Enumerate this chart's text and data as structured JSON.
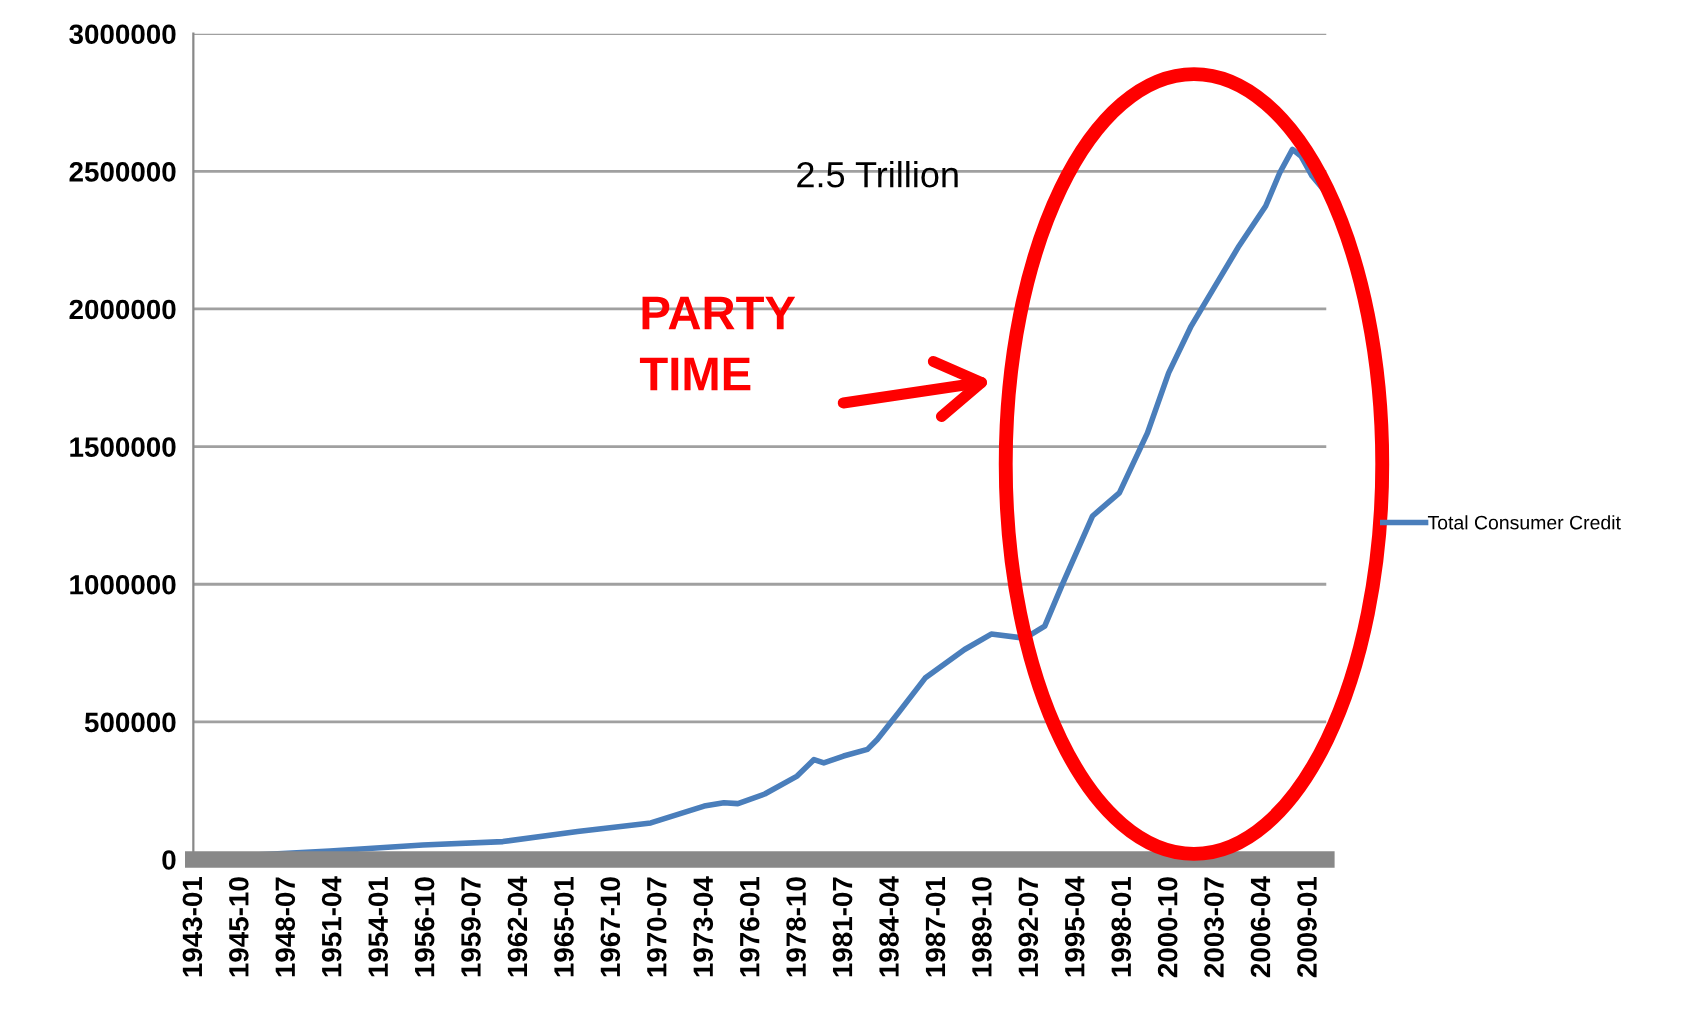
{
  "chart_data": {
    "type": "line",
    "x": [
      "1943-01",
      "1951-01",
      "1956-07",
      "1961-04",
      "1965-09",
      "1970-01",
      "1973-03",
      "1974-05",
      "1975-03",
      "1976-10",
      "1978-09",
      "1979-09",
      "1980-04",
      "1981-06",
      "1982-11",
      "1983-06",
      "1984-09",
      "1986-04",
      "1988-08",
      "1990-03",
      "1992-03",
      "1993-05",
      "1994-05",
      "1996-03",
      "1997-10",
      "1999-06",
      "2000-09",
      "2002-01",
      "2003-06",
      "2004-11",
      "2006-06",
      "2007-04",
      "2008-01",
      "2008-07",
      "2009-03",
      "2010-01"
    ],
    "series": [
      {
        "name": "Total Consumer Credit",
        "color": "#4a7ebb",
        "values": [
          5000,
          31000,
          53000,
          65000,
          102000,
          133000,
          194000,
          206000,
          203000,
          238000,
          303000,
          363000,
          351000,
          376000,
          400000,
          436000,
          533000,
          659000,
          763000,
          819000,
          804000,
          848000,
          993000,
          1248000,
          1332000,
          1550000,
          1768000,
          1938000,
          2083000,
          2229000,
          2374000,
          2495000,
          2580000,
          2556000,
          2483000,
          2422000
        ]
      }
    ],
    "xlim": [
      "1942-12",
      "2010-01"
    ],
    "xticks": [
      "1943-01",
      "1945-10",
      "1948-07",
      "1951-04",
      "1954-01",
      "1956-10",
      "1959-07",
      "1962-04",
      "1965-01",
      "1967-10",
      "1970-07",
      "1973-04",
      "1976-01",
      "1978-10",
      "1981-07",
      "1984-04",
      "1987-01",
      "1989-10",
      "1992-07",
      "1995-04",
      "1998-01",
      "2000-10",
      "2003-07",
      "2006-04",
      "2009-01"
    ],
    "ylim": [
      0,
      3000000
    ],
    "yticks": [
      0,
      500000,
      1000000,
      1500000,
      2000000,
      2500000,
      3000000
    ],
    "grid": "y",
    "legend": "right",
    "marker": "none",
    "line_style": "solid",
    "annotations": [
      "2.5 Trillion",
      "PARTY TIME"
    ]
  }
}
